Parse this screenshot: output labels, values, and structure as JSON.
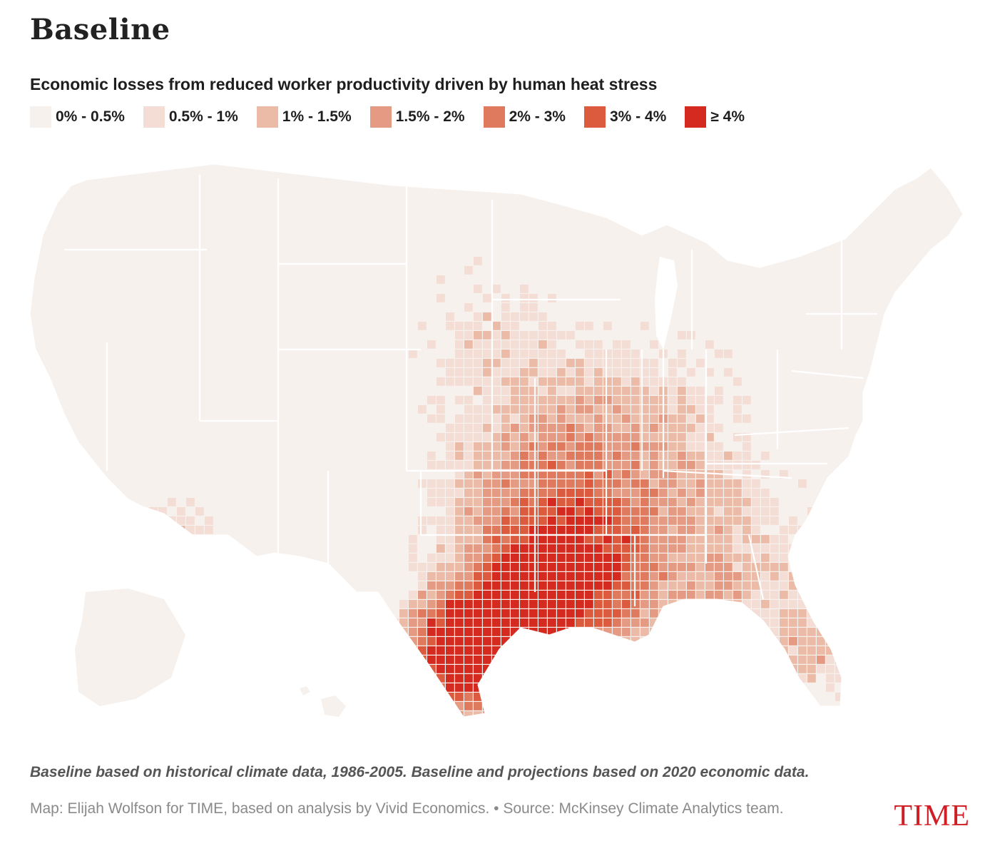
{
  "title": "Baseline",
  "subtitle": "Economic losses from reduced worker productivity driven by human heat stress",
  "legend": [
    {
      "label": "0% - 0.5%",
      "color": "#f7f1ee"
    },
    {
      "label": "0.5% - 1%",
      "color": "#f3ddd5"
    },
    {
      "label": "1% - 1.5%",
      "color": "#ebbba7"
    },
    {
      "label": "1.5% - 2%",
      "color": "#e49a83"
    },
    {
      "label": "2% - 3%",
      "color": "#e07a5f"
    },
    {
      "label": "3% - 4%",
      "color": "#dc5a3e"
    },
    {
      "label": "≥ 4%",
      "color": "#d42a20"
    }
  ],
  "note": "Baseline based on historical climate data, 1986-2005. Baseline and projections based on 2020 economic data.",
  "credit": "Map: Elijah Wolfson for TIME, based on analysis by Vivid Economics. • Source: McKinsey Climate Analytics team.",
  "logo": "TIME",
  "map": {
    "base_color": "#f7f1ee",
    "border_color": "#ffffff"
  }
}
